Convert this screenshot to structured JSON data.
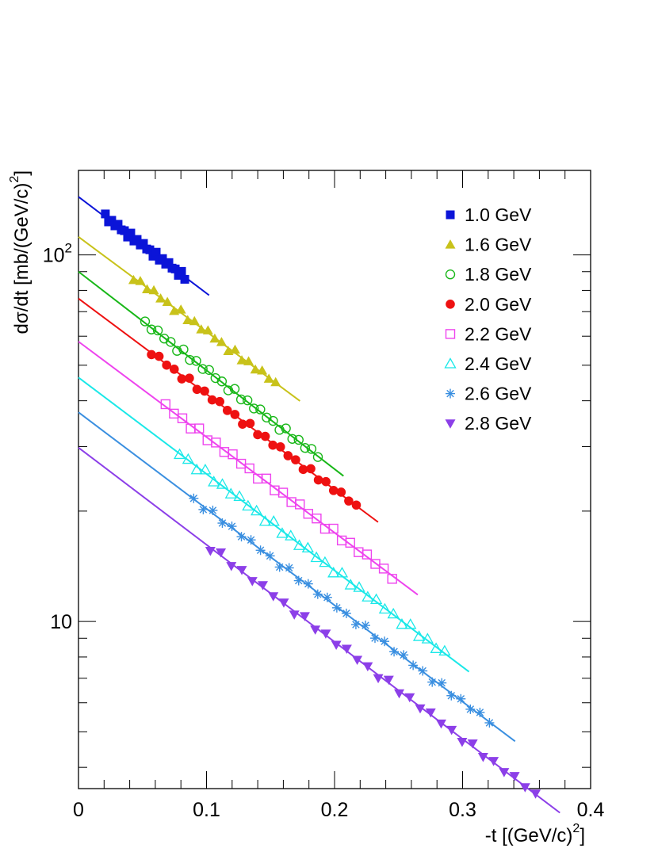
{
  "chart_data": {
    "type": "scatter",
    "xlabel": "-t [(GeV/c)",
    "xlabel_sup": "2",
    "xlabel_end": "]",
    "ylabel": "dσ/dt [mb/(GeV/c)",
    "ylabel_sup": "2",
    "ylabel_end": "]",
    "xlim": [
      0,
      0.4
    ],
    "ylim": [
      3.5,
      170
    ],
    "yscale": "log",
    "grid": false,
    "legend_position": "top-right",
    "x_ticks": [
      {
        "value": 0,
        "label": "0"
      },
      {
        "value": 0.1,
        "label": "0.1"
      },
      {
        "value": 0.2,
        "label": "0.2"
      },
      {
        "value": 0.3,
        "label": "0.3"
      },
      {
        "value": 0.4,
        "label": "0.4"
      }
    ],
    "y_ticks": [
      {
        "value": 10,
        "label": "10",
        "sup": ""
      },
      {
        "value": 100,
        "label": "10",
        "sup": "2"
      }
    ],
    "series": [
      {
        "name": "1.0 GeV",
        "color": "#0b14d8",
        "marker": "square-filled",
        "fit": {
          "a": 144,
          "b": 6.06,
          "x_end": 0.102
        },
        "x_start": 0.021,
        "x_end": 0.083,
        "n_points": 26
      },
      {
        "name": "1.6 GeV",
        "color": "#c8c21a",
        "marker": "triangle-up-filled",
        "fit": {
          "a": 112,
          "b": 5.96,
          "x_end": 0.173
        },
        "x_start": 0.043,
        "x_end": 0.154,
        "n_points": 22
      },
      {
        "name": "1.8 GeV",
        "color": "#18b718",
        "marker": "circle-open",
        "fit": {
          "a": 90,
          "b": 6.2,
          "x_end": 0.207
        },
        "x_start": 0.052,
        "x_end": 0.187,
        "n_points": 28
      },
      {
        "name": "2.0 GeV",
        "color": "#ee1111",
        "marker": "circle-filled",
        "fit": {
          "a": 76,
          "b": 6.0,
          "x_end": 0.234
        },
        "x_start": 0.057,
        "x_end": 0.217,
        "n_points": 28
      },
      {
        "name": "2.2 GeV",
        "color": "#ee44ee",
        "marker": "square-open",
        "fit": {
          "a": 58,
          "b": 6.0,
          "x_end": 0.265
        },
        "x_start": 0.068,
        "x_end": 0.245,
        "n_points": 28
      },
      {
        "name": "2.4 GeV",
        "color": "#1ae8e8",
        "marker": "triangle-up-open",
        "fit": {
          "a": 46.3,
          "b": 6.06,
          "x_end": 0.305
        },
        "x_start": 0.079,
        "x_end": 0.286,
        "n_points": 32
      },
      {
        "name": "2.6 GeV",
        "color": "#3a8fe0",
        "marker": "asterisk",
        "fit": {
          "a": 37.2,
          "b": 6.06,
          "x_end": 0.341
        },
        "x_start": 0.09,
        "x_end": 0.321,
        "n_points": 32
      },
      {
        "name": "2.8 GeV",
        "color": "#8c3fe8",
        "marker": "triangle-down-filled",
        "fit": {
          "a": 29.8,
          "b": 6.1,
          "x_end": 0.376
        },
        "x_start": 0.103,
        "x_end": 0.357,
        "n_points": 32
      }
    ]
  }
}
